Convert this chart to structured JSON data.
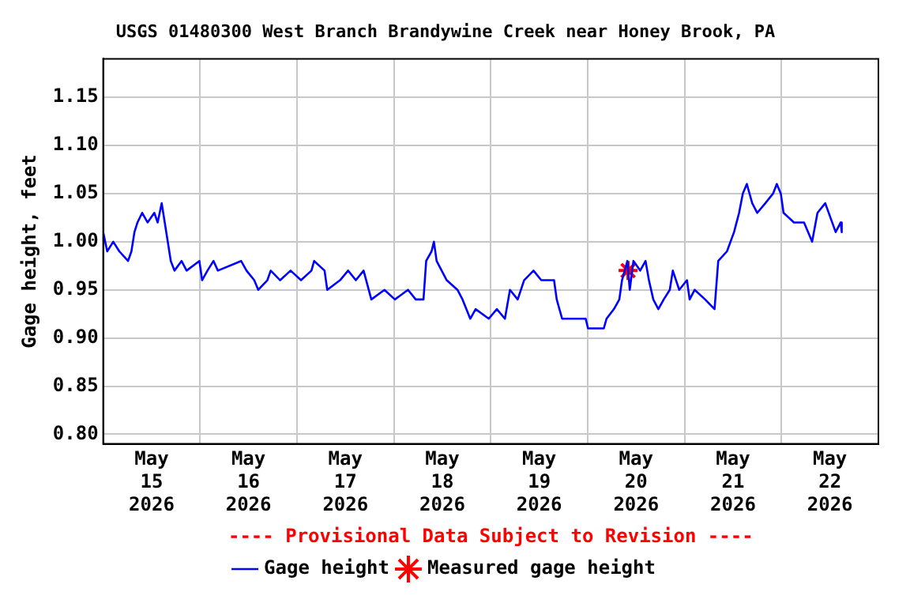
{
  "chart_data": {
    "type": "line",
    "title": "USGS 01480300 West Branch Brandywine Creek near Honey Brook, PA",
    "ylabel": "Gage height, feet",
    "annotations": [
      "---- Provisional Data Subject to Revision ----"
    ],
    "xlim": [
      "2026-05-15T00:00",
      "2026-05-23T00:00"
    ],
    "xticks": [
      {
        "value": "2026-05-15T12:00",
        "label": "May 15 2026"
      },
      {
        "value": "2026-05-16T00:00",
        "label": null
      },
      {
        "value": "2026-05-16T12:00",
        "label": "May 16 2026"
      },
      {
        "value": "2026-05-17T00:00",
        "label": null
      },
      {
        "value": "2026-05-17T12:00",
        "label": "May 17 2026"
      },
      {
        "value": "2026-05-18T00:00",
        "label": null
      },
      {
        "value": "2026-05-18T12:00",
        "label": "May 18 2026"
      },
      {
        "value": "2026-05-19T00:00",
        "label": null
      },
      {
        "value": "2026-05-19T12:00",
        "label": "May 19 2026"
      },
      {
        "value": "2026-05-20T00:00",
        "label": null
      },
      {
        "value": "2026-05-20T12:00",
        "label": "May 20 2026"
      },
      {
        "value": "2026-05-21T00:00",
        "label": null
      },
      {
        "value": "2026-05-21T12:00",
        "label": "May 21 2026"
      },
      {
        "value": "2026-05-22T00:00",
        "label": null
      },
      {
        "value": "2026-05-22T12:00",
        "label": "May 22 2026"
      }
    ],
    "ylim": [
      0.79,
      1.19
    ],
    "yticks": [
      {
        "value": 0.8,
        "label": "0.80"
      },
      {
        "value": 0.85,
        "label": "0.85"
      },
      {
        "value": 0.9,
        "label": "0.90"
      },
      {
        "value": 0.95,
        "label": "0.95"
      },
      {
        "value": 1.0,
        "label": "1.00"
      },
      {
        "value": 1.05,
        "label": "1.05"
      },
      {
        "value": 1.1,
        "label": "1.10"
      },
      {
        "value": 1.15,
        "label": "1.15"
      }
    ],
    "grid": true,
    "legend": "bottom",
    "series": [
      {
        "name": "Gage height",
        "type": "line",
        "color": "#0000ff",
        "marker": "none",
        "x": [
          "2026-05-15T00:00",
          "2026-05-15T01:00",
          "2026-05-15T02:30",
          "2026-05-15T04:00",
          "2026-05-15T06:10",
          "2026-05-15T07:00",
          "2026-05-15T07:45",
          "2026-05-15T08:30",
          "2026-05-15T09:40",
          "2026-05-15T11:00",
          "2026-05-15T12:40",
          "2026-05-15T13:30",
          "2026-05-15T14:30",
          "2026-05-15T15:15",
          "2026-05-15T16:00",
          "2026-05-15T16:45",
          "2026-05-15T17:40",
          "2026-05-15T19:25",
          "2026-05-15T20:40",
          "2026-05-15T23:50",
          "2026-05-16T00:30",
          "2026-05-16T01:50",
          "2026-05-16T03:20",
          "2026-05-16T04:25",
          "2026-05-16T10:10",
          "2026-05-16T11:30",
          "2026-05-16T13:25",
          "2026-05-16T14:25",
          "2026-05-16T16:40",
          "2026-05-16T17:30",
          "2026-05-16T19:50",
          "2026-05-16T22:25",
          "2026-05-17T01:00",
          "2026-05-17T03:35",
          "2026-05-17T04:15",
          "2026-05-17T06:50",
          "2026-05-17T07:30",
          "2026-05-17T10:40",
          "2026-05-17T12:40",
          "2026-05-17T14:35",
          "2026-05-17T16:30",
          "2026-05-17T18:25",
          "2026-05-17T21:40",
          "2026-05-18T00:15",
          "2026-05-18T03:30",
          "2026-05-18T05:25",
          "2026-05-18T07:20",
          "2026-05-18T08:00",
          "2026-05-18T09:20",
          "2026-05-18T09:55",
          "2026-05-18T10:35",
          "2026-05-18T11:50",
          "2026-05-18T13:05",
          "2026-05-18T15:45",
          "2026-05-18T17:00",
          "2026-05-18T18:55",
          "2026-05-18T20:15",
          "2026-05-18T23:30",
          "2026-05-19T01:30",
          "2026-05-19T03:30",
          "2026-05-19T04:45",
          "2026-05-19T06:40",
          "2026-05-19T08:15",
          "2026-05-19T10:35",
          "2026-05-19T12:30",
          "2026-05-19T15:40",
          "2026-05-19T16:20",
          "2026-05-19T17:40",
          "2026-05-19T23:30",
          "2026-05-20T00:05",
          "2026-05-20T04:00",
          "2026-05-20T04:40",
          "2026-05-20T06:30",
          "2026-05-20T07:50",
          "2026-05-20T08:30",
          "2026-05-20T09:50",
          "2026-05-20T10:25",
          "2026-05-20T11:20",
          "2026-05-20T13:00",
          "2026-05-20T14:20",
          "2026-05-20T15:10",
          "2026-05-20T16:15",
          "2026-05-20T17:30",
          "2026-05-20T18:50",
          "2026-05-20T20:20",
          "2026-05-20T21:05",
          "2026-05-20T22:40",
          "2026-05-21T00:35",
          "2026-05-21T01:15",
          "2026-05-21T02:30",
          "2026-05-21T05:05",
          "2026-05-21T07:25",
          "2026-05-21T08:20",
          "2026-05-21T10:30",
          "2026-05-21T12:15",
          "2026-05-21T13:30",
          "2026-05-21T14:25",
          "2026-05-21T15:25",
          "2026-05-21T16:45",
          "2026-05-21T18:00",
          "2026-05-21T20:00",
          "2026-05-21T21:55",
          "2026-05-21T22:50",
          "2026-05-21T23:50",
          "2026-05-22T00:30",
          "2026-05-22T03:05",
          "2026-05-22T05:35",
          "2026-05-22T07:35",
          "2026-05-22T08:55",
          "2026-05-22T10:50",
          "2026-05-22T13:25",
          "2026-05-22T14:40",
          "2026-05-22T14:55"
        ],
        "values": [
          1.01,
          0.99,
          1.0,
          0.99,
          0.98,
          0.99,
          1.01,
          1.02,
          1.03,
          1.02,
          1.03,
          1.02,
          1.04,
          1.02,
          1.0,
          0.98,
          0.97,
          0.98,
          0.97,
          0.98,
          0.96,
          0.97,
          0.98,
          0.97,
          0.98,
          0.97,
          0.96,
          0.95,
          0.96,
          0.97,
          0.96,
          0.97,
          0.96,
          0.97,
          0.98,
          0.97,
          0.95,
          0.96,
          0.97,
          0.96,
          0.97,
          0.94,
          0.95,
          0.94,
          0.95,
          0.94,
          0.94,
          0.98,
          0.99,
          1.0,
          0.98,
          0.97,
          0.96,
          0.95,
          0.94,
          0.92,
          0.93,
          0.92,
          0.93,
          0.92,
          0.95,
          0.94,
          0.96,
          0.97,
          0.96,
          0.96,
          0.94,
          0.92,
          0.92,
          0.91,
          0.91,
          0.92,
          0.93,
          0.94,
          0.96,
          0.98,
          0.95,
          0.98,
          0.97,
          0.98,
          0.96,
          0.94,
          0.93,
          0.94,
          0.95,
          0.97,
          0.95,
          0.96,
          0.94,
          0.95,
          0.94,
          0.93,
          0.98,
          0.99,
          1.01,
          1.03,
          1.05,
          1.06,
          1.04,
          1.03,
          1.04,
          1.05,
          1.06,
          1.05,
          1.03,
          1.02,
          1.02,
          1.0,
          1.03,
          1.04,
          1.01,
          1.02,
          1.01
        ]
      },
      {
        "name": "Measured gage height",
        "type": "scatter",
        "color": "#ff0000",
        "marker": "cross",
        "x": [
          "2026-05-20T10:00"
        ],
        "values": [
          0.97
        ]
      }
    ]
  }
}
